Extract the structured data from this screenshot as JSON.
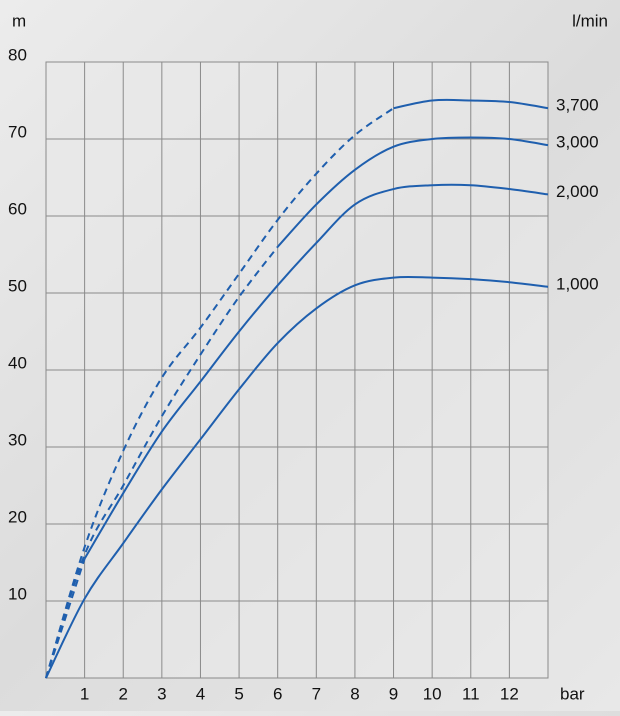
{
  "chart_data": {
    "type": "line",
    "y_label": "m",
    "y2_label": "l/min",
    "x_label": "bar",
    "x": [
      0,
      1,
      2,
      3,
      4,
      5,
      6,
      7,
      8,
      9,
      10,
      11,
      12,
      13
    ],
    "xlim": [
      0,
      13
    ],
    "xticks": [
      1,
      2,
      3,
      4,
      5,
      6,
      7,
      8,
      9,
      10,
      11,
      12
    ],
    "ylim": [
      0,
      80
    ],
    "yticks": [
      10,
      20,
      30,
      40,
      50,
      60,
      70,
      80
    ],
    "grid": true,
    "series": [
      {
        "name": "1,000",
        "color": "#1f5fae",
        "values": [
          0,
          10.3,
          17.5,
          24.5,
          31,
          37.5,
          43.5,
          48,
          51,
          52,
          52,
          51.8,
          51.4,
          50.8
        ],
        "styles": [
          "solid",
          "solid",
          "solid",
          "solid",
          "solid",
          "solid",
          "solid",
          "solid",
          "solid",
          "solid",
          "solid",
          "solid",
          "solid",
          "solid"
        ]
      },
      {
        "name": "2,000",
        "color": "#1f5fae",
        "values": [
          0,
          15.5,
          24,
          32,
          38.5,
          45,
          51,
          56.5,
          61.5,
          63.5,
          64,
          64,
          63.5,
          62.8
        ],
        "styles": [
          "dashed",
          "dashed",
          "solid",
          "solid",
          "solid",
          "solid",
          "solid",
          "solid",
          "solid",
          "solid",
          "solid",
          "solid",
          "solid",
          "solid"
        ]
      },
      {
        "name": "3,000",
        "color": "#1f5fae",
        "values": [
          0,
          16,
          25,
          34,
          42,
          49.5,
          56,
          61.5,
          66,
          69,
          70,
          70.2,
          70,
          69.2
        ],
        "styles": [
          "dashed",
          "dashed",
          "dashed",
          "dashed",
          "dashed",
          "dashed",
          "dashed",
          "solid",
          "solid",
          "solid",
          "solid",
          "solid",
          "solid",
          "solid"
        ]
      },
      {
        "name": "3,700",
        "color": "#1f5fae",
        "values": [
          0,
          17,
          29.5,
          39,
          45.5,
          52.5,
          59.5,
          65.5,
          70.5,
          74,
          75,
          75,
          74.8,
          74
        ],
        "styles": [
          "dashed",
          "dashed",
          "dashed",
          "dashed",
          "dashed",
          "dashed",
          "dashed",
          "dashed",
          "dashed",
          "dashed",
          "solid",
          "solid",
          "solid",
          "solid"
        ]
      }
    ]
  }
}
